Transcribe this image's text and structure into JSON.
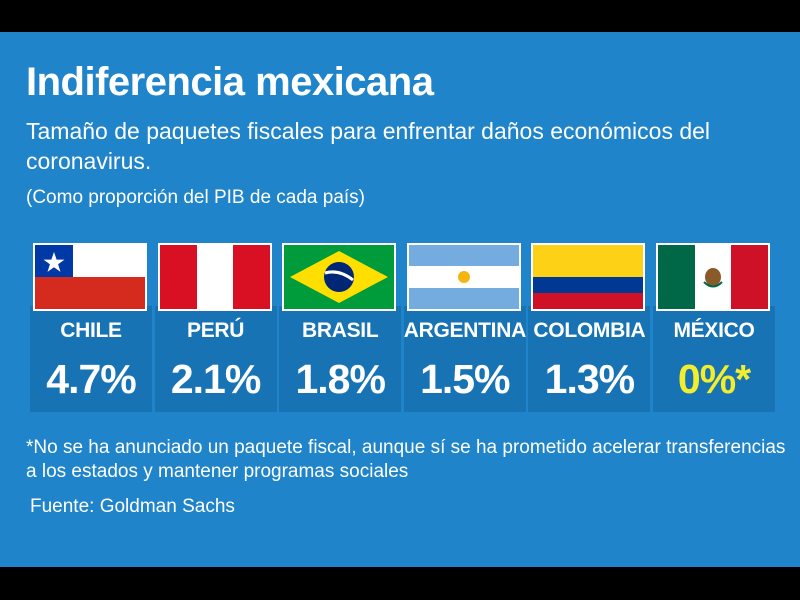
{
  "header": {
    "title": "Indiferencia mexicana",
    "subtitle": "Tamaño de paquetes fiscales para enfrentar daños económicos del coronavirus.",
    "unit_note": "(Como proporción del PIB de cada país)"
  },
  "chart_data": {
    "type": "table",
    "title": "Indiferencia mexicana",
    "categories": [
      "CHILE",
      "PERÚ",
      "BRASIL",
      "ARGENTINA",
      "COLOMBIA",
      "MÉXICO"
    ],
    "values": [
      4.7,
      2.1,
      1.8,
      1.5,
      1.3,
      0
    ],
    "value_labels": [
      "4.7%",
      "2.1%",
      "1.8%",
      "1.5%",
      "1.3%",
      "0%*"
    ],
    "flags": [
      "chile-flag",
      "peru-flag",
      "brazil-flag",
      "argentina-flag",
      "colombia-flag",
      "mexico-flag"
    ],
    "xlabel": "",
    "ylabel": "Como proporción del PIB de cada país"
  },
  "colors": {
    "background": "#1f84c9",
    "column_shade": "#1873b4",
    "text": "#ffffff",
    "highlight": "#f2ee2e"
  },
  "footer": {
    "footnote": "*No se ha anunciado un paquete fiscal, aunque sí se ha prometido acelerar transferencias a los estados y mantener programas sociales",
    "source": "Fuente:  Goldman Sachs"
  }
}
